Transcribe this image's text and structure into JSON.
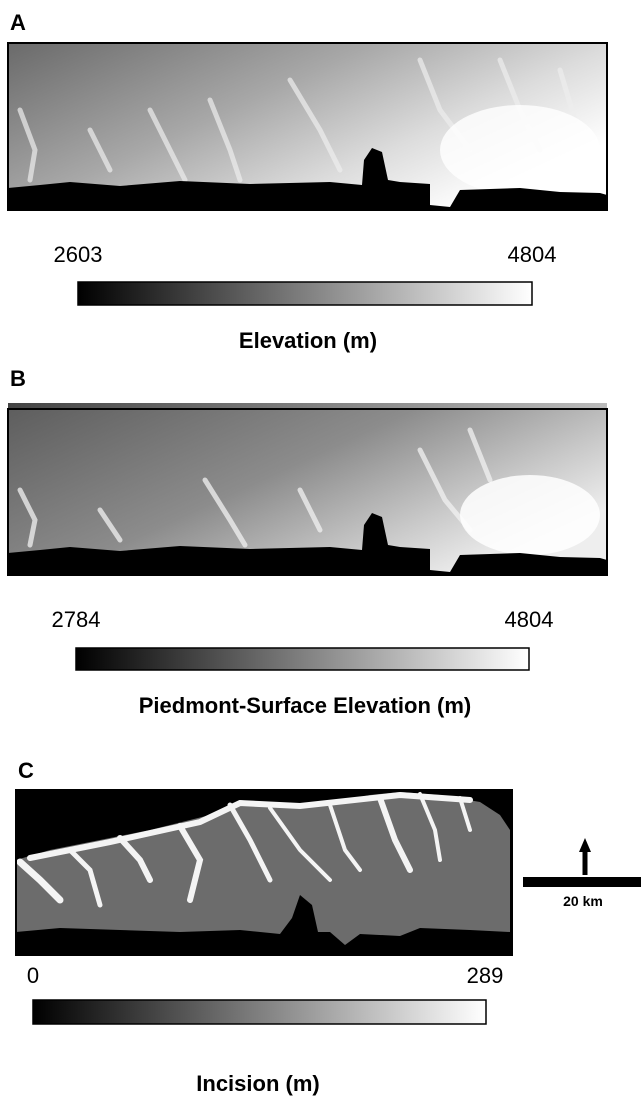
{
  "panels": [
    {
      "label": "A",
      "colorbar": {
        "min": 2603,
        "max": 4804,
        "title": "Elevation (m)"
      }
    },
    {
      "label": "B",
      "colorbar": {
        "min": 2784,
        "max": 4804,
        "title": "Piedmont-Surface Elevation (m)"
      }
    },
    {
      "label": "C",
      "colorbar": {
        "min": 0,
        "max": 289,
        "title": "Incision (m)"
      }
    }
  ],
  "scale_bar": "20 km"
}
